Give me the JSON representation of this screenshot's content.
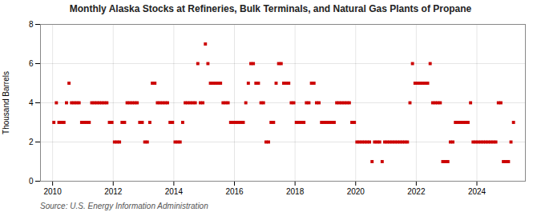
{
  "chart_data": {
    "type": "scatter",
    "title": "Monthly Alaska Stocks at Refineries, Bulk Terminals, and Natural Gas Plants of Propane",
    "ylabel": "Thousand Barrels",
    "source": "Source: U.S. Energy Information Administration",
    "color": "#cc0000",
    "marker": "square",
    "grid": true,
    "xlim": [
      2009.6,
      2025.6
    ],
    "xticks": [
      2010,
      2012,
      2014,
      2016,
      2018,
      2020,
      2022,
      2024
    ],
    "ylim": [
      0,
      8
    ],
    "yticks": [
      0,
      2,
      4,
      6,
      8
    ],
    "x": [
      2010.041667,
      2010.125,
      2010.208333,
      2010.291667,
      2010.375,
      2010.458333,
      2010.541667,
      2010.625,
      2010.708333,
      2010.791667,
      2010.875,
      2010.958333,
      2011.041667,
      2011.125,
      2011.208333,
      2011.291667,
      2011.375,
      2011.458333,
      2011.541667,
      2011.625,
      2011.708333,
      2011.791667,
      2011.875,
      2011.958333,
      2012.041667,
      2012.125,
      2012.208333,
      2012.291667,
      2012.375,
      2012.458333,
      2012.541667,
      2012.625,
      2012.708333,
      2012.791667,
      2012.875,
      2012.958333,
      2013.041667,
      2013.125,
      2013.208333,
      2013.291667,
      2013.375,
      2013.458333,
      2013.541667,
      2013.625,
      2013.708333,
      2013.791667,
      2013.875,
      2013.958333,
      2014.041667,
      2014.125,
      2014.208333,
      2014.291667,
      2014.375,
      2014.458333,
      2014.541667,
      2014.625,
      2014.708333,
      2014.791667,
      2014.875,
      2014.958333,
      2015.041667,
      2015.125,
      2015.208333,
      2015.291667,
      2015.375,
      2015.458333,
      2015.541667,
      2015.625,
      2015.708333,
      2015.791667,
      2015.875,
      2015.958333,
      2016.041667,
      2016.125,
      2016.208333,
      2016.291667,
      2016.375,
      2016.458333,
      2016.541667,
      2016.625,
      2016.708333,
      2016.791667,
      2016.875,
      2016.958333,
      2017.041667,
      2017.125,
      2017.208333,
      2017.291667,
      2017.375,
      2017.458333,
      2017.541667,
      2017.625,
      2017.708333,
      2017.791667,
      2017.875,
      2017.958333,
      2018.041667,
      2018.125,
      2018.208333,
      2018.291667,
      2018.375,
      2018.458333,
      2018.541667,
      2018.625,
      2018.708333,
      2018.791667,
      2018.875,
      2018.958333,
      2019.041667,
      2019.125,
      2019.208333,
      2019.291667,
      2019.375,
      2019.458333,
      2019.541667,
      2019.625,
      2019.708333,
      2019.791667,
      2019.875,
      2019.958333,
      2020.041667,
      2020.125,
      2020.208333,
      2020.291667,
      2020.375,
      2020.458333,
      2020.541667,
      2020.625,
      2020.708333,
      2020.791667,
      2020.875,
      2020.958333,
      2021.041667,
      2021.125,
      2021.208333,
      2021.291667,
      2021.375,
      2021.458333,
      2021.541667,
      2021.625,
      2021.708333,
      2021.791667,
      2021.875,
      2021.958333,
      2022.041667,
      2022.125,
      2022.208333,
      2022.291667,
      2022.375,
      2022.458333,
      2022.541667,
      2022.625,
      2022.708333,
      2022.791667,
      2022.875,
      2022.958333,
      2023.041667,
      2023.125,
      2023.208333,
      2023.291667,
      2023.375,
      2023.458333,
      2023.541667,
      2023.625,
      2023.708333,
      2023.791667,
      2023.875,
      2023.958333,
      2024.041667,
      2024.125,
      2024.208333,
      2024.291667,
      2024.375,
      2024.458333,
      2024.541667,
      2024.625,
      2024.708333,
      2024.791667,
      2024.875,
      2024.958333,
      2025.041667,
      2025.125,
      2025.208333
    ],
    "values": [
      3,
      4,
      3,
      3,
      3,
      4,
      5,
      4,
      4,
      4,
      4,
      3,
      3,
      3,
      3,
      4,
      4,
      4,
      4,
      4,
      4,
      4,
      3,
      3,
      2,
      2,
      2,
      3,
      3,
      4,
      4,
      4,
      4,
      4,
      3,
      3,
      2,
      2,
      3,
      5,
      5,
      4,
      4,
      4,
      4,
      4,
      3,
      3,
      2,
      2,
      2,
      3,
      4,
      4,
      4,
      4,
      4,
      6,
      4,
      4,
      7,
      6,
      5,
      5,
      5,
      5,
      5,
      4,
      4,
      4,
      3,
      3,
      3,
      3,
      3,
      3,
      4,
      5,
      6,
      6,
      5,
      5,
      4,
      4,
      2,
      2,
      3,
      3,
      5,
      6,
      6,
      5,
      5,
      5,
      4,
      4,
      3,
      3,
      3,
      3,
      4,
      4,
      5,
      5,
      4,
      4,
      3,
      3,
      3,
      3,
      3,
      3,
      4,
      4,
      4,
      4,
      4,
      4,
      3,
      3,
      2,
      2,
      2,
      2,
      2,
      2,
      1,
      2,
      2,
      2,
      1,
      2,
      2,
      2,
      2,
      2,
      2,
      2,
      2,
      2,
      2,
      4,
      6,
      5,
      5,
      5,
      5,
      5,
      5,
      6,
      4,
      4,
      4,
      4,
      1,
      1,
      1,
      2,
      2,
      3,
      3,
      3,
      3,
      3,
      3,
      4,
      2,
      2,
      2,
      2,
      2,
      2,
      2,
      2,
      2,
      2,
      4,
      4,
      1,
      1,
      1,
      2,
      3
    ]
  }
}
